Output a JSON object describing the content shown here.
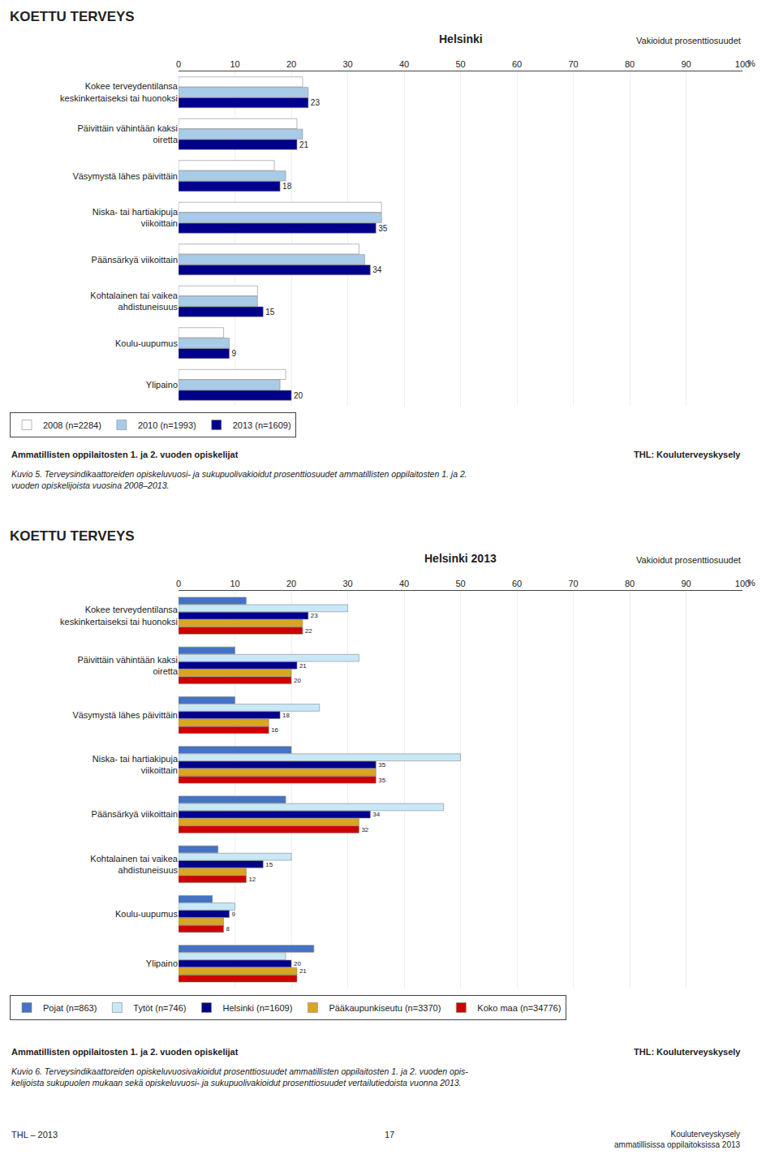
{
  "chart_data": [
    {
      "type": "bar",
      "orientation": "horizontal",
      "title": "KOETTU TERVEYS",
      "subtitle": "Helsinki",
      "xlabel": "%",
      "categories": [
        "Kokee terveydentilansa\nkeskinkertaiseksi tai huonoksi",
        "Päivittäin vähintään kaksi\noiretta",
        "Väsymystä lähes päivittäin",
        "Niska- tai hartiakipuja\nviikoittain",
        "Päänsärkyä viikoittain",
        "Kohtalainen tai vaikea\nahdistuneisuus",
        "Koulu-uupumus",
        "Ylipaino"
      ],
      "series": [
        {
          "name": "2008 (n=2284)",
          "color": "#FFFFFF",
          "values": [
            22,
            21,
            17,
            36,
            32,
            14,
            8,
            19
          ]
        },
        {
          "name": "2010 (n=1993)",
          "color": "#A8CCE8",
          "values": [
            23,
            22,
            19,
            36,
            33,
            14,
            9,
            18
          ]
        },
        {
          "name": "2013 (n=1609)",
          "color": "#00008B",
          "values": [
            23,
            21,
            18,
            35,
            34,
            15,
            9,
            20
          ],
          "value_labels": [
            "23",
            "21",
            "18",
            "35",
            "34",
            "15",
            "9",
            "20"
          ]
        }
      ],
      "xlim": [
        0,
        100
      ],
      "xticks": [
        0,
        10,
        20,
        30,
        40,
        50,
        60,
        70,
        80,
        90,
        100
      ],
      "grid": true,
      "legend": "bottom",
      "data_labels": true,
      "annotations": [
        {
          "text": "Vakioidut prosenttiosuudet"
        },
        {
          "text": "Ammatillisten oppilaitosten 1. ja 2. vuoden opiskelijat"
        },
        {
          "text": "THL: Kouluterveyskysely"
        },
        {
          "text": "Kuvio 5. Terveysindikaattoreiden opiskeluvuosi- ja sukupuolivakioidut prosenttiosuudet ammatillisten oppilaitosten 1. ja 2.\nvuoden opiskelijoista vuosina 2008–2013."
        }
      ]
    },
    {
      "type": "bar",
      "orientation": "horizontal",
      "title": "KOETTU TERVEYS",
      "subtitle": "Helsinki 2013",
      "xlabel": "%",
      "categories": [
        "Kokee terveydentilansa\nkeskinkertaiseksi tai huonoksi",
        "Päivittäin vähintään kaksi\noiretta",
        "Väsymystä lähes päivittäin",
        "Niska- tai hartiakipuja\nviikoittain",
        "Päänsärkyä viikoittain",
        "Kohtalainen tai vaikea\nahdistuneisuus",
        "Koulu-uupumus",
        "Ylipaino"
      ],
      "series": [
        {
          "name": "Pojat (n=863)",
          "color": "#4472C4",
          "values": [
            12,
            10,
            10,
            20,
            19,
            7,
            6,
            24
          ]
        },
        {
          "name": "Tytöt (n=746)",
          "color": "#C8E8F8",
          "values": [
            30,
            32,
            25,
            50,
            47,
            20,
            10,
            19
          ]
        },
        {
          "name": "Helsinki (n=1609)",
          "color": "#00008B",
          "values": [
            23,
            21,
            18,
            35,
            34,
            15,
            9,
            20
          ],
          "value_labels": [
            "23",
            "21",
            "18",
            "35",
            "34",
            "15",
            "9",
            "20"
          ]
        },
        {
          "name": "Pääkaupunkiseutu (n=3370)",
          "color": "#DAA520",
          "values": [
            22,
            20,
            16,
            35,
            32,
            12,
            8,
            21
          ],
          "value_labels": [
            null,
            null,
            null,
            null,
            null,
            null,
            null,
            "21"
          ]
        },
        {
          "name": "Koko maa (n=34776)",
          "color": "#CC0000",
          "values": [
            22,
            20,
            16,
            35,
            32,
            12,
            8,
            21
          ],
          "value_labels": [
            "22",
            "20",
            "16",
            "35",
            "32",
            "12",
            "8",
            null
          ]
        }
      ],
      "xlim": [
        0,
        100
      ],
      "xticks": [
        0,
        10,
        20,
        30,
        40,
        50,
        60,
        70,
        80,
        90,
        100
      ],
      "grid": true,
      "legend": "bottom",
      "data_labels": true,
      "annotations": [
        {
          "text": "Vakioidut prosenttiosuudet"
        },
        {
          "text": "Ammatillisten oppilaitosten 1. ja 2. vuoden opiskelijat"
        },
        {
          "text": "THL: Kouluterveyskysely"
        },
        {
          "text": "Kuvio 6. Terveysindikaattoreiden opiskeluvuosivakioidut prosenttiosuudet ammatillisten oppilaitosten 1. ja 2. vuoden opis-\nkelijoista sukupuolen mukaan sekä opiskeluvuosi- ja sukupuolivakioidut prosenttiosuudet vertailutiedoista vuonna 2013."
        },
        {
          "text": "THL – 2013"
        },
        {
          "text": "17"
        },
        {
          "text": "Kouluterveyskysely\nammatillisissa oppilaitoksissa 2013"
        }
      ]
    }
  ]
}
